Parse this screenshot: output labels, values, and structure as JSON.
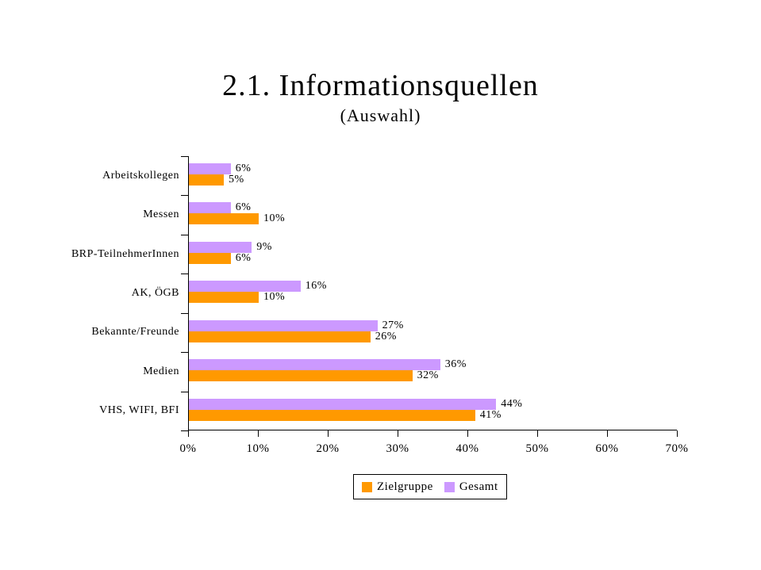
{
  "title": "2.1. Informationsquellen",
  "subtitle": "(Auswahl)",
  "colors": {
    "zielgruppe": "#FF9900",
    "gesamt": "#CC99FF",
    "axis": "#000000",
    "background": "#FFFFFF"
  },
  "legend": [
    {
      "label": "Zielgruppe",
      "color": "#FF9900"
    },
    {
      "label": "Gesamt",
      "color": "#CC99FF"
    }
  ],
  "chart_data": {
    "type": "bar",
    "orientation": "horizontal",
    "title": "2.1. Informationsquellen",
    "subtitle": "(Auswahl)",
    "categories": [
      "Arbeitskollegen",
      "Messen",
      "BRP-TeilnehmerInnen",
      "AK, ÖGB",
      "Bekannte/Freunde",
      "Medien",
      "VHS, WIFI, BFI"
    ],
    "series": [
      {
        "name": "Gesamt",
        "color": "#CC99FF",
        "values": [
          6,
          6,
          9,
          16,
          27,
          36,
          44
        ]
      },
      {
        "name": "Zielgruppe",
        "color": "#FF9900",
        "values": [
          5,
          10,
          6,
          10,
          26,
          32,
          41
        ]
      }
    ],
    "value_suffix": "%",
    "xlim": [
      0,
      70
    ],
    "x_ticks": [
      "0%",
      "10%",
      "20%",
      "30%",
      "40%",
      "50%",
      "60%",
      "70%"
    ],
    "data_labels": true,
    "grid": false,
    "legend_position": "bottom"
  }
}
